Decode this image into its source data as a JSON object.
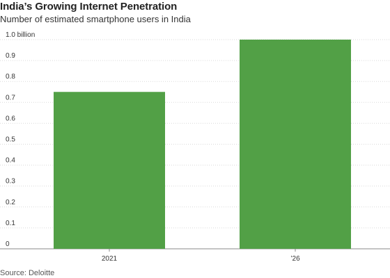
{
  "header": {
    "title": "India’s Growing Internet Penetration",
    "subtitle": "Number of estimated smartphone users in India"
  },
  "footer": {
    "source": "Source: Deloitte"
  },
  "chart_data": {
    "type": "bar",
    "title": "India’s Growing Internet Penetration",
    "subtitle": "Number of estimated smartphone users in India",
    "categories": [
      "2021",
      "’26"
    ],
    "values": [
      0.75,
      1.0
    ],
    "unit": "billion",
    "ylim": [
      0,
      1.0
    ],
    "yticks": [
      0,
      0.1,
      0.2,
      0.3,
      0.4,
      0.5,
      0.6,
      0.7,
      0.8,
      0.9,
      1.0
    ],
    "ytick_labels": [
      "0",
      "0.1",
      "0.2",
      "0.3",
      "0.4",
      "0.5",
      "0.6",
      "0.7",
      "0.8",
      "0.9",
      "1.0 billion"
    ],
    "xlabel": "",
    "ylabel": "",
    "grid": true,
    "bar_color": "#52a046",
    "source": "Source: Deloitte"
  }
}
